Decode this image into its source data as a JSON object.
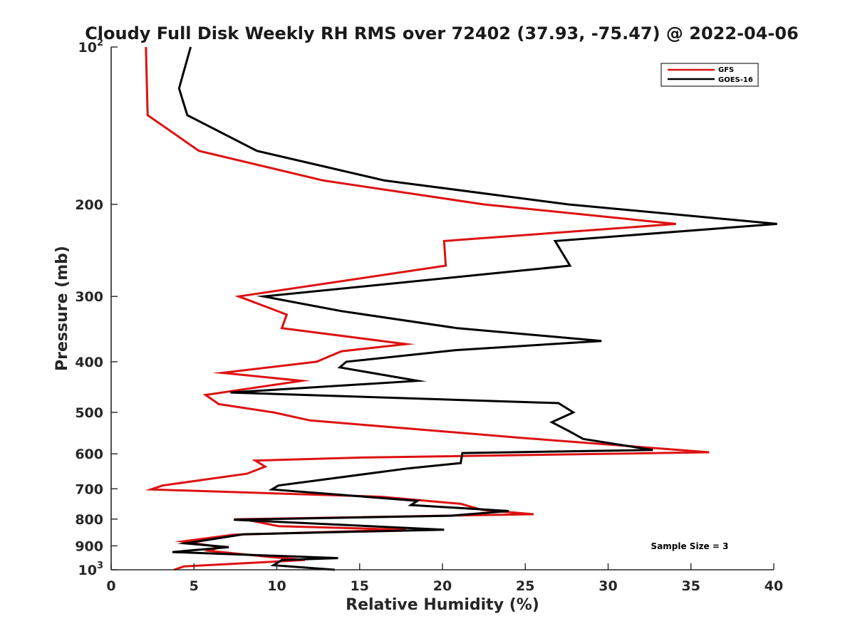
{
  "chart_data": {
    "type": "line",
    "title": "Cloudy Full Disk Weekly RH RMS over 72402 (37.93, -75.47) @ 2022-04-06",
    "xlabel": "Relative Humidity (%)",
    "ylabel": "Pressure (mb)",
    "xlim": [
      0,
      40
    ],
    "ylim": [
      100,
      1000
    ],
    "yscale": "log",
    "y_reversed": true,
    "grid": false,
    "legend_position": "top-right",
    "x_ticks": [
      "0",
      "5",
      "10",
      "15",
      "20",
      "25",
      "30",
      "35",
      "40"
    ],
    "x_tick_values": [
      0,
      5,
      10,
      15,
      20,
      25,
      30,
      35,
      40
    ],
    "y_ticks": [
      {
        "value": 100,
        "base": "10",
        "sup": "2"
      },
      {
        "value": 200,
        "label": "200"
      },
      {
        "value": 300,
        "label": "300"
      },
      {
        "value": 400,
        "label": "400"
      },
      {
        "value": 500,
        "label": "500"
      },
      {
        "value": 600,
        "label": "600"
      },
      {
        "value": 700,
        "label": "700"
      },
      {
        "value": 800,
        "label": "800"
      },
      {
        "value": 900,
        "label": "900"
      },
      {
        "value": 1000,
        "base": "10",
        "sup": "3"
      }
    ],
    "annotation": "Sample Size = 3",
    "series": [
      {
        "name": "GFS",
        "color": "#dd1111",
        "points": [
          [
            2.1,
            100
          ],
          [
            2.2,
            135
          ],
          [
            5.3,
            158
          ],
          [
            12.8,
            180
          ],
          [
            22.5,
            200
          ],
          [
            34.1,
            218
          ],
          [
            20.1,
            235
          ],
          [
            20.2,
            262
          ],
          [
            7.7,
            300
          ],
          [
            10.6,
            325
          ],
          [
            10.3,
            345
          ],
          [
            17.8,
            370
          ],
          [
            13.9,
            382
          ],
          [
            12.4,
            400
          ],
          [
            6.7,
            420
          ],
          [
            11.5,
            435
          ],
          [
            5.7,
            463
          ],
          [
            6.5,
            482
          ],
          [
            9.8,
            500
          ],
          [
            12.0,
            518
          ],
          [
            25.0,
            560
          ],
          [
            36.1,
            596
          ],
          [
            15.2,
            610
          ],
          [
            8.7,
            618
          ],
          [
            9.3,
            635
          ],
          [
            8.2,
            655
          ],
          [
            3.1,
            690
          ],
          [
            2.4,
            702
          ],
          [
            16.3,
            725
          ],
          [
            21.1,
            748
          ],
          [
            22.4,
            768
          ],
          [
            25.5,
            783
          ],
          [
            8.0,
            800
          ],
          [
            10.1,
            825
          ],
          [
            17.8,
            838
          ],
          [
            7.4,
            857
          ],
          [
            4.3,
            883
          ],
          [
            6.6,
            905
          ],
          [
            5.9,
            920
          ],
          [
            9.6,
            945
          ],
          [
            11.7,
            958
          ],
          [
            4.4,
            985
          ],
          [
            3.8,
            1000
          ]
        ]
      },
      {
        "name": "GOES-16",
        "color": "#000000",
        "points": [
          [
            4.8,
            100
          ],
          [
            4.1,
            120
          ],
          [
            4.6,
            135
          ],
          [
            8.8,
            158
          ],
          [
            16.5,
            180
          ],
          [
            27.6,
            200
          ],
          [
            40.2,
            218
          ],
          [
            26.8,
            235
          ],
          [
            27.7,
            262
          ],
          [
            9.2,
            300
          ],
          [
            13.9,
            320
          ],
          [
            20.9,
            345
          ],
          [
            29.6,
            365
          ],
          [
            20.8,
            380
          ],
          [
            14.2,
            400
          ],
          [
            13.8,
            410
          ],
          [
            18.5,
            435
          ],
          [
            7.2,
            458
          ],
          [
            13.5,
            465
          ],
          [
            27.0,
            480
          ],
          [
            27.9,
            500
          ],
          [
            26.6,
            522
          ],
          [
            27.6,
            542
          ],
          [
            28.5,
            562
          ],
          [
            32.7,
            590
          ],
          [
            21.2,
            598
          ],
          [
            21.1,
            625
          ],
          [
            17.9,
            640
          ],
          [
            10.1,
            690
          ],
          [
            9.7,
            702
          ],
          [
            18.5,
            738
          ],
          [
            18.1,
            752
          ],
          [
            24.0,
            772
          ],
          [
            20.5,
            788
          ],
          [
            7.4,
            802
          ],
          [
            20.1,
            838
          ],
          [
            8.0,
            855
          ],
          [
            4.5,
            890
          ],
          [
            7.1,
            905
          ],
          [
            3.7,
            925
          ],
          [
            13.7,
            950
          ],
          [
            10.3,
            958
          ],
          [
            9.8,
            980
          ],
          [
            13.5,
            1000
          ]
        ]
      }
    ]
  }
}
